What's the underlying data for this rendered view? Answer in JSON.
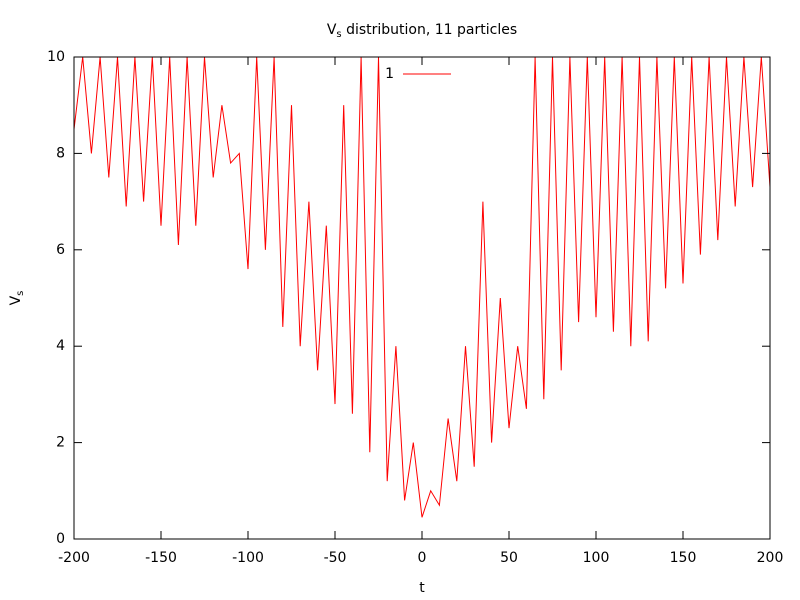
{
  "chart_data": {
    "type": "line",
    "title": {
      "main": "V",
      "sub": "s",
      "rest": " distribution, 11 particles"
    },
    "xlabel": "t",
    "ylabel": {
      "main": "V",
      "sub": "s"
    },
    "x": [
      -200,
      -195,
      -190,
      -185,
      -180,
      -175,
      -170,
      -165,
      -160,
      -155,
      -150,
      -145,
      -140,
      -135,
      -130,
      -125,
      -120,
      -115,
      -110,
      -105,
      -100,
      -95,
      -90,
      -85,
      -80,
      -75,
      -70,
      -65,
      -60,
      -55,
      -50,
      -45,
      -40,
      -35,
      -30,
      -25,
      -20,
      -15,
      -10,
      -5,
      0,
      5,
      10,
      15,
      20,
      25,
      30,
      35,
      40,
      45,
      50,
      55,
      60,
      65,
      70,
      75,
      80,
      85,
      90,
      95,
      100,
      105,
      110,
      115,
      120,
      125,
      130,
      135,
      140,
      145,
      150,
      155,
      160,
      165,
      170,
      175,
      180,
      185,
      190,
      195,
      200
    ],
    "series": [
      {
        "name": "1",
        "color": "#ff0000",
        "values": [
          8.5,
          10,
          8.0,
          10,
          7.5,
          10,
          6.9,
          10,
          7.0,
          10,
          6.5,
          10,
          6.1,
          10,
          6.5,
          10,
          7.5,
          9,
          7.8,
          8,
          5.6,
          10,
          6.0,
          10,
          4.4,
          9,
          4.0,
          7,
          3.5,
          6.5,
          2.8,
          9,
          2.6,
          10,
          1.8,
          10,
          1.2,
          4,
          0.8,
          2,
          0.45,
          1,
          0.7,
          2.5,
          1.2,
          4,
          1.5,
          7,
          2.0,
          5,
          2.3,
          4,
          2.7,
          10,
          2.9,
          10,
          3.5,
          10,
          4.5,
          10,
          4.6,
          10,
          4.3,
          10,
          4.0,
          10,
          4.1,
          10,
          5.2,
          10,
          5.3,
          10,
          5.9,
          10,
          6.2,
          10,
          6.9,
          10,
          7.3,
          10,
          7.3
        ]
      }
    ],
    "xlim": [
      -200,
      200
    ],
    "xticks": [
      -200,
      -150,
      -100,
      -50,
      0,
      50,
      100,
      150,
      200
    ],
    "ylim": [
      0,
      10
    ],
    "yticks": [
      0,
      2,
      4,
      6,
      8,
      10
    ],
    "legend": "top-center"
  }
}
